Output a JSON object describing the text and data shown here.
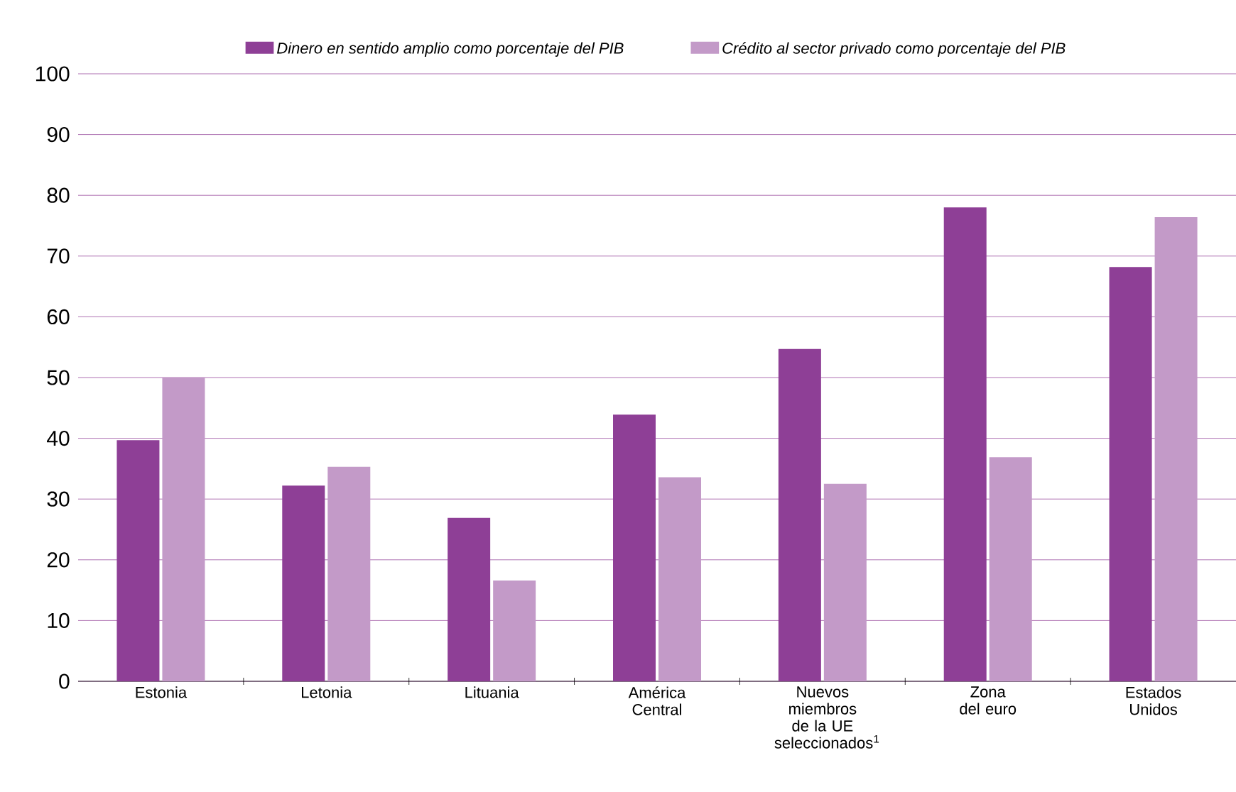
{
  "chart_data": {
    "type": "bar",
    "categories": [
      "Estonia",
      "Letonia",
      "Lituania",
      "América Central",
      "Nuevos miembros de la UE seleccionados$^{1}$",
      "Zona del euro",
      "Estados Unidos"
    ],
    "series": [
      {
        "name": "*Dinero en sentido amplio como porcentaje del PIB*",
        "color": "#8e3f96",
        "values": [
          39.7,
          32.2,
          26.9,
          43.9,
          54.7,
          78.0,
          68.2
        ]
      },
      {
        "name": "*Crédito al sector privado como porcentaje del PIB*",
        "color": "#c39ac8",
        "values": [
          50.0,
          35.3,
          16.6,
          33.6,
          32.5,
          36.9,
          76.4
        ]
      }
    ],
    "ylim": [
      0,
      100
    ],
    "yticks": [
      0,
      10,
      20,
      30,
      40,
      50,
      60,
      70,
      80,
      90,
      100
    ],
    "grid": "y",
    "legend": "top"
  }
}
